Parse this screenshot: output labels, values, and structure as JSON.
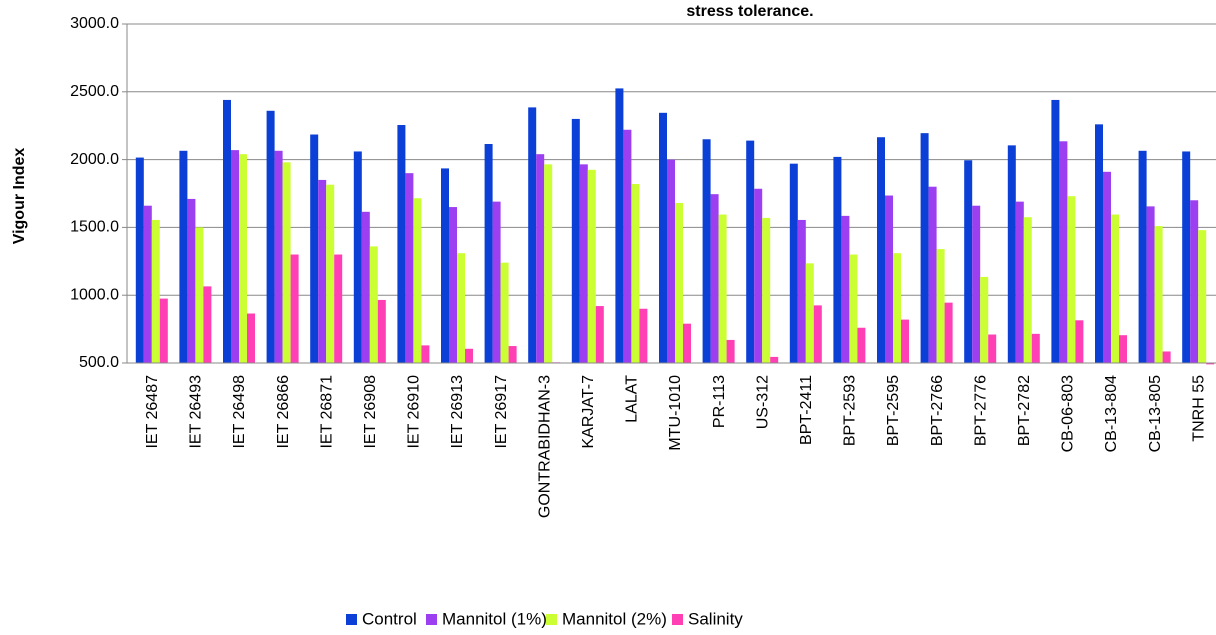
{
  "chart_data": {
    "type": "bar",
    "title": "stress tolerance.",
    "y_label": "Vigour Index",
    "categories": [
      "IET 26487",
      "IET 26493",
      "IET 26498",
      "IET 26866",
      "IET 26871",
      "IET 26908",
      "IET 26910",
      "IET 26913",
      "IET 26917",
      "GONTRABIDHAN-3",
      "KARJAT-7",
      "LALAT",
      "MTU-1010",
      "PR-113",
      "US-312",
      "BPT-2411",
      "BPT-2593",
      "BPT-2595",
      "BPT-2766",
      "BPT-2776",
      "BPT-2782",
      "CB-06-803",
      "CB-13-804",
      "CB-13-805",
      "TNRH 55"
    ],
    "series": [
      {
        "name": "Control",
        "color": "#0b3fd6",
        "values": [
          2015,
          2065,
          2440,
          2360,
          2185,
          2060,
          2255,
          1935,
          2115,
          2385,
          2300,
          2525,
          2345,
          2150,
          2140,
          1970,
          2020,
          2165,
          2195,
          1995,
          2105,
          2440,
          2260,
          2065,
          2060
        ]
      },
      {
        "name": "Mannitol (1%)",
        "color": "#9b3ff0",
        "values": [
          1660,
          1710,
          2070,
          2065,
          1850,
          1615,
          1900,
          1650,
          1690,
          2040,
          1965,
          2220,
          2000,
          1745,
          1785,
          1555,
          1585,
          1735,
          1800,
          1660,
          1690,
          2135,
          1910,
          1655,
          1700
        ]
      },
      {
        "name": "Mannitol (2%)",
        "color": "#ccff33",
        "values": [
          1555,
          1500,
          2040,
          1980,
          1815,
          1360,
          1715,
          1310,
          1240,
          1965,
          1925,
          1820,
          1680,
          1595,
          1570,
          1235,
          1300,
          1310,
          1340,
          1135,
          1575,
          1730,
          1595,
          1510,
          1480
        ]
      },
      {
        "name": "Salinity",
        "color": "#ff3fb4",
        "values": [
          975,
          1065,
          865,
          1300,
          1300,
          965,
          630,
          605,
          625,
          505,
          920,
          900,
          790,
          670,
          545,
          925,
          760,
          820,
          945,
          710,
          715,
          815,
          705,
          585,
          490
        ]
      }
    ],
    "ylim": [
      500,
      3000
    ],
    "yticks": [
      {
        "value": 500,
        "label": "500.0"
      },
      {
        "value": 1000,
        "label": "1000.0"
      },
      {
        "value": 1500,
        "label": "1500.0"
      },
      {
        "value": 2000,
        "label": "2000.0"
      },
      {
        "value": 2500,
        "label": "2500.0"
      },
      {
        "value": 3000,
        "label": "3000.0"
      }
    ],
    "grid": true,
    "legend": "bottom"
  }
}
